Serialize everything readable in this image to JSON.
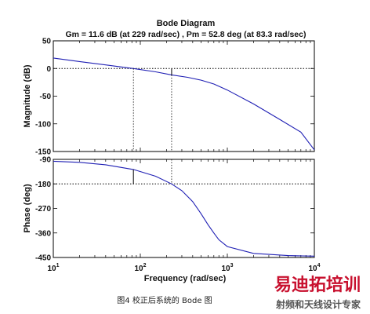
{
  "chart_data": {
    "type": "line",
    "title": "Bode Diagram",
    "subtitle": "Gm = 11.6 dB (at 229 rad/sec) ,  Pm = 52.8 deg (at 83.3 rad/sec)",
    "xlabel": "Frequency  (rad/sec)",
    "x_scale": "log",
    "xlim": [
      10,
      10000
    ],
    "x_ticks": [
      {
        "value": 10,
        "base": "10",
        "exp": "1"
      },
      {
        "value": 100,
        "base": "10",
        "exp": "2"
      },
      {
        "value": 1000,
        "base": "10",
        "exp": "3"
      },
      {
        "value": 10000,
        "base": "10",
        "exp": "4"
      }
    ],
    "panels": [
      {
        "name": "magnitude",
        "ylabel": "Magnitude (dB)",
        "ylim": [
          -150,
          50
        ],
        "yticks": [
          50,
          0,
          -50,
          -100,
          -150
        ],
        "reference_line": 0,
        "series": [
          {
            "color": "#1f1fb4",
            "x": [
              10,
              20,
              40,
              83.3,
              150,
              229,
              350,
              500,
              700,
              1000,
              2000,
              4000,
              7000,
              10000
            ],
            "y": [
              19,
              12.5,
              6.5,
              0,
              -6,
              -11.6,
              -16,
              -21,
              -28,
              -39,
              -64,
              -92,
              -115,
              -147
            ]
          }
        ]
      },
      {
        "name": "phase",
        "ylabel": "Phase (deg)",
        "ylim": [
          -450,
          -90
        ],
        "yticks": [
          -90,
          -180,
          -270,
          -360,
          -450
        ],
        "reference_line": -180,
        "series": [
          {
            "color": "#1f1fb4",
            "x": [
              10,
              20,
              40,
              83.3,
              150,
              229,
              300,
              400,
              500,
              600,
              700,
              800,
              1000,
              2000,
              5000,
              10000
            ],
            "y": [
              -97,
              -101,
              -110,
              -127.2,
              -152,
              -180,
              -205,
              -245,
              -290,
              -330,
              -360,
              -385,
              -410,
              -435,
              -443,
              -445
            ]
          }
        ]
      }
    ],
    "annotations": {
      "gain_margin": {
        "frequency": 229,
        "value_db": 11.6
      },
      "phase_margin": {
        "frequency": 83.3,
        "value_deg": 52.8
      }
    }
  },
  "caption": "图4   校正后系统的 Bode 图",
  "watermark": {
    "brand": "易迪拓培训",
    "tagline": "射频和天线设计专家",
    "brand_color": "#c8102e"
  }
}
